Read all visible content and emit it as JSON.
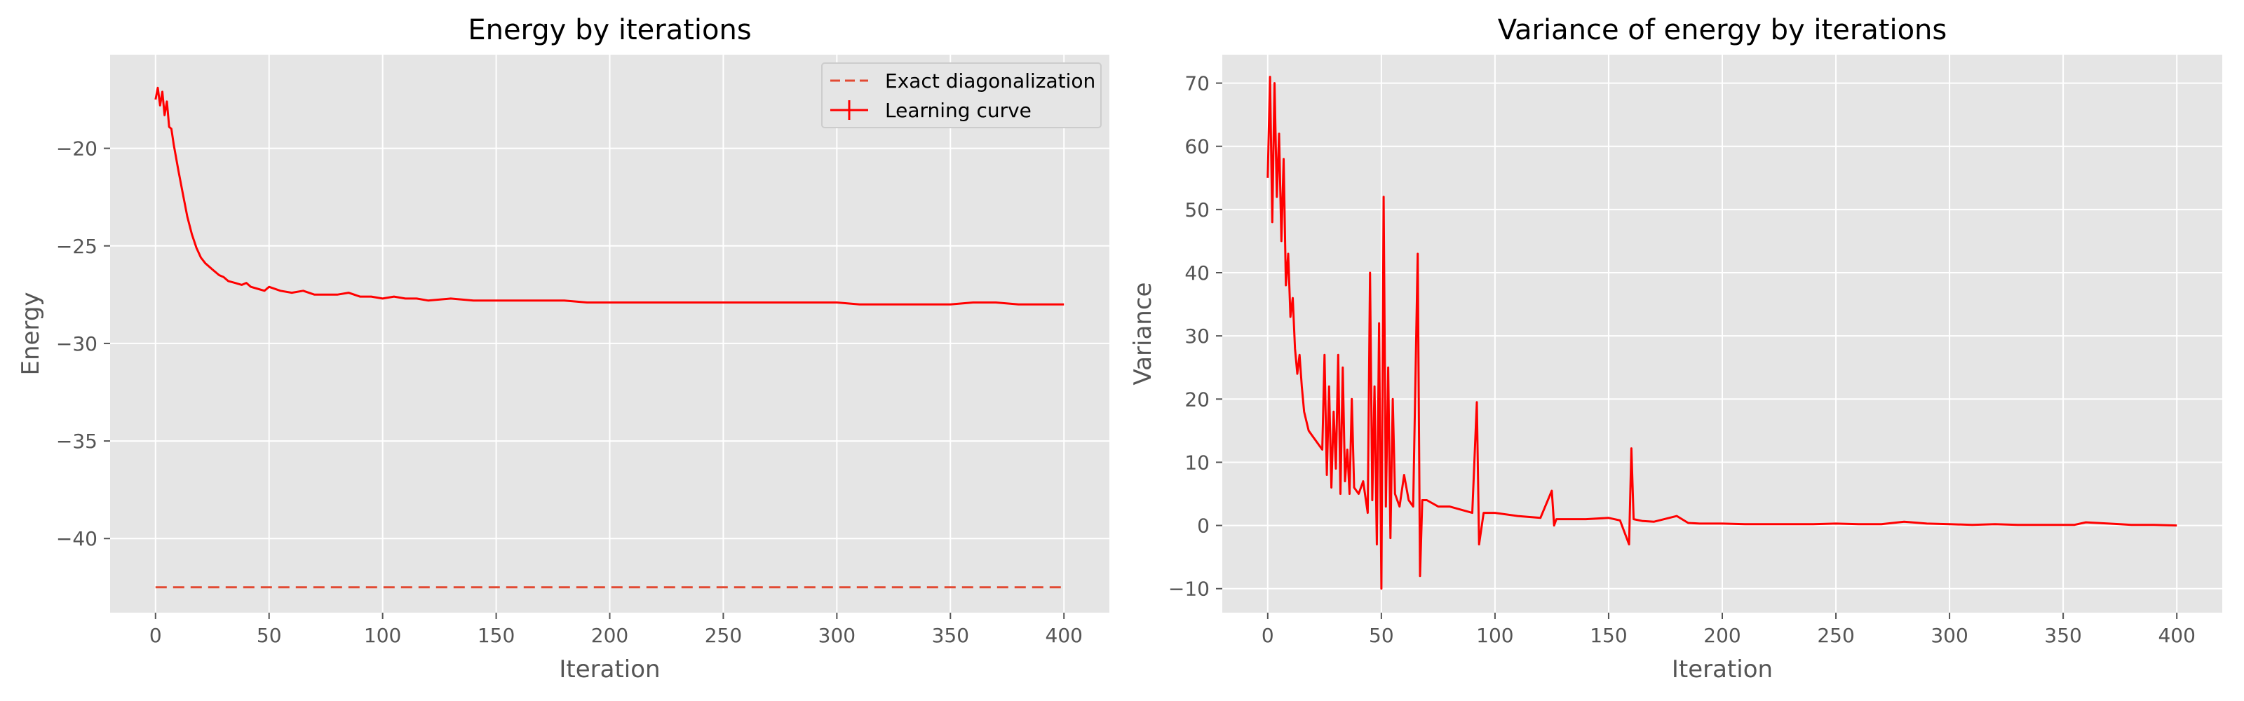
{
  "chart_data": [
    {
      "type": "line",
      "title": "Energy by iterations",
      "xlabel": "Iteration",
      "ylabel": "Energy",
      "xlim": [
        -20,
        420
      ],
      "ylim": [
        -43.8,
        -15.2
      ],
      "xticks": [
        0,
        50,
        100,
        150,
        200,
        250,
        300,
        350,
        400
      ],
      "yticks": [
        -40,
        -35,
        -30,
        -25,
        -20
      ],
      "xtick_labels": [
        "0",
        "50",
        "100",
        "150",
        "200",
        "250",
        "300",
        "350",
        "400"
      ],
      "ytick_labels": [
        "−40",
        "−35",
        "−30",
        "−25",
        "−20"
      ],
      "grid": true,
      "legend_position": "top-right",
      "colors": {
        "series": "#ff0000",
        "reference": "#e24a33",
        "background": "#e5e5e5",
        "grid": "#ffffff"
      },
      "series": [
        {
          "name": "Exact diagonalization",
          "style": "dashed",
          "x": [
            0,
            400
          ],
          "y": [
            -42.5,
            -42.5
          ]
        },
        {
          "name": "Learning curve",
          "style": "solid-with-errorbars",
          "x": [
            0,
            1,
            2,
            3,
            4,
            5,
            6,
            7,
            8,
            10,
            12,
            14,
            16,
            18,
            20,
            22,
            25,
            28,
            30,
            32,
            35,
            38,
            40,
            42,
            45,
            48,
            50,
            55,
            60,
            65,
            70,
            75,
            80,
            85,
            90,
            95,
            100,
            105,
            110,
            115,
            120,
            130,
            140,
            150,
            160,
            170,
            180,
            190,
            200,
            210,
            220,
            230,
            240,
            250,
            260,
            270,
            280,
            290,
            300,
            310,
            320,
            330,
            340,
            350,
            360,
            370,
            380,
            390,
            400
          ],
          "y": [
            -17.5,
            -16.9,
            -17.8,
            -17.1,
            -18.3,
            -17.6,
            -18.9,
            -19.0,
            -19.8,
            -21.1,
            -22.3,
            -23.5,
            -24.4,
            -25.1,
            -25.6,
            -25.9,
            -26.2,
            -26.5,
            -26.6,
            -26.8,
            -26.9,
            -27.0,
            -26.9,
            -27.1,
            -27.2,
            -27.3,
            -27.1,
            -27.3,
            -27.4,
            -27.3,
            -27.5,
            -27.5,
            -27.5,
            -27.4,
            -27.6,
            -27.6,
            -27.7,
            -27.6,
            -27.7,
            -27.7,
            -27.8,
            -27.7,
            -27.8,
            -27.8,
            -27.8,
            -27.8,
            -27.8,
            -27.9,
            -27.9,
            -27.9,
            -27.9,
            -27.9,
            -27.9,
            -27.9,
            -27.9,
            -27.9,
            -27.9,
            -27.9,
            -27.9,
            -28.0,
            -28.0,
            -28.0,
            -28.0,
            -28.0,
            -27.9,
            -27.9,
            -28.0,
            -28.0,
            -28.0
          ]
        }
      ]
    },
    {
      "type": "line",
      "title": "Variance of energy by iterations",
      "xlabel": "Iteration",
      "ylabel": "Variance",
      "xlim": [
        -20,
        420
      ],
      "ylim": [
        -13.8,
        74.5
      ],
      "xticks": [
        0,
        50,
        100,
        150,
        200,
        250,
        300,
        350,
        400
      ],
      "yticks": [
        -10,
        0,
        10,
        20,
        30,
        40,
        50,
        60,
        70
      ],
      "xtick_labels": [
        "0",
        "50",
        "100",
        "150",
        "200",
        "250",
        "300",
        "350",
        "400"
      ],
      "ytick_labels": [
        "−10",
        "0",
        "10",
        "20",
        "30",
        "40",
        "50",
        "60",
        "70"
      ],
      "grid": true,
      "colors": {
        "series": "#ff0000",
        "background": "#e5e5e5",
        "grid": "#ffffff"
      },
      "series": [
        {
          "style": "solid",
          "x": [
            0,
            1,
            2,
            3,
            4,
            5,
            6,
            7,
            8,
            9,
            10,
            11,
            12,
            13,
            14,
            15,
            16,
            18,
            20,
            22,
            24,
            25,
            26,
            27,
            28,
            29,
            30,
            31,
            32,
            33,
            34,
            35,
            36,
            37,
            38,
            40,
            42,
            44,
            45,
            46,
            47,
            48,
            49,
            50,
            51,
            52,
            53,
            54,
            55,
            56,
            58,
            60,
            62,
            64,
            66,
            67,
            68,
            70,
            75,
            80,
            85,
            90,
            92,
            93,
            95,
            100,
            110,
            120,
            125,
            126,
            127,
            130,
            140,
            150,
            155,
            159,
            160,
            161,
            165,
            170,
            180,
            185,
            190,
            200,
            210,
            220,
            230,
            240,
            250,
            260,
            270,
            280,
            290,
            300,
            310,
            320,
            330,
            340,
            350,
            355,
            360,
            365,
            370,
            375,
            380,
            385,
            390,
            400
          ],
          "y": [
            55,
            71,
            48,
            70,
            52,
            62,
            45,
            58,
            38,
            43,
            33,
            36,
            28,
            24,
            27,
            22,
            18,
            15,
            14,
            13,
            12,
            27,
            8,
            22,
            6,
            18,
            9,
            27,
            5,
            25,
            7,
            12,
            5,
            20,
            6,
            5,
            7,
            2,
            40,
            4,
            22,
            -3,
            32,
            -10,
            52,
            3,
            25,
            -2,
            20,
            5,
            3,
            8,
            4,
            3,
            43,
            -8,
            4,
            4,
            3,
            3,
            2.5,
            2,
            19.5,
            -3,
            2,
            2,
            1.5,
            1.2,
            5.5,
            0,
            1,
            1,
            1,
            1.2,
            0.8,
            -3,
            12.2,
            1,
            0.7,
            0.6,
            1.5,
            0.4,
            0.3,
            0.3,
            0.2,
            0.2,
            0.2,
            0.2,
            0.3,
            0.2,
            0.2,
            0.6,
            0.3,
            0.2,
            0.1,
            0.2,
            0.1,
            0.1,
            0.1,
            0.1,
            0.5,
            0.4,
            0.3,
            0.2,
            0.1,
            0.1,
            0.1,
            0.0
          ]
        }
      ]
    }
  ]
}
